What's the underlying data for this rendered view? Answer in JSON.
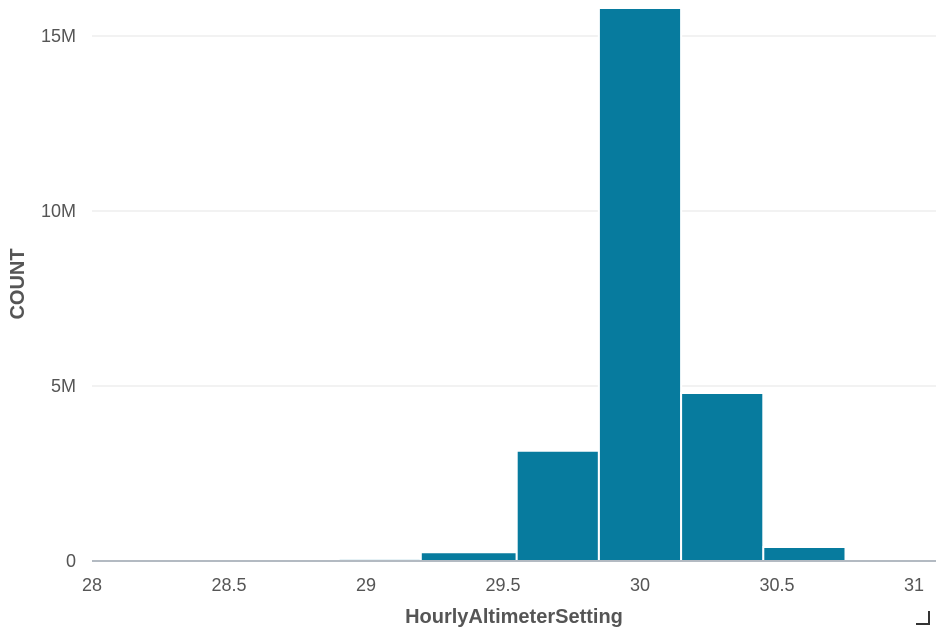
{
  "chart_data": {
    "type": "bar",
    "title": "",
    "xlabel": "HourlyAltimeterSetting",
    "ylabel": "COUNT",
    "xlim": [
      28,
      31
    ],
    "ylim": [
      0,
      15000000
    ],
    "x_ticks": [
      {
        "value": 28,
        "label": "28"
      },
      {
        "value": 28.5,
        "label": "28.5"
      },
      {
        "value": 29,
        "label": "29"
      },
      {
        "value": 29.5,
        "label": "29.5"
      },
      {
        "value": 30,
        "label": "30"
      },
      {
        "value": 30.5,
        "label": "30.5"
      },
      {
        "value": 31,
        "label": "31"
      }
    ],
    "y_ticks": [
      {
        "value": 0,
        "label": "0"
      },
      {
        "value": 5000000,
        "label": "5M"
      },
      {
        "value": 10000000,
        "label": "10M"
      },
      {
        "value": 15000000,
        "label": "15M"
      }
    ],
    "grid": true,
    "color": "#077b9e",
    "bins": [
      {
        "x0": 27.9,
        "x1": 28.2,
        "count": 0
      },
      {
        "x0": 28.2,
        "x1": 28.6,
        "count": 0
      },
      {
        "x0": 28.6,
        "x1": 28.9,
        "count": 0
      },
      {
        "x0": 28.9,
        "x1": 29.2,
        "count": 60000
      },
      {
        "x0": 29.2,
        "x1": 29.55,
        "count": 250000
      },
      {
        "x0": 29.55,
        "x1": 29.85,
        "count": 3150000
      },
      {
        "x0": 29.85,
        "x1": 30.15,
        "count": 15800000
      },
      {
        "x0": 30.15,
        "x1": 30.45,
        "count": 4800000
      },
      {
        "x0": 30.45,
        "x1": 30.75,
        "count": 400000
      },
      {
        "x0": 30.75,
        "x1": 31.05,
        "count": 30000
      }
    ]
  }
}
